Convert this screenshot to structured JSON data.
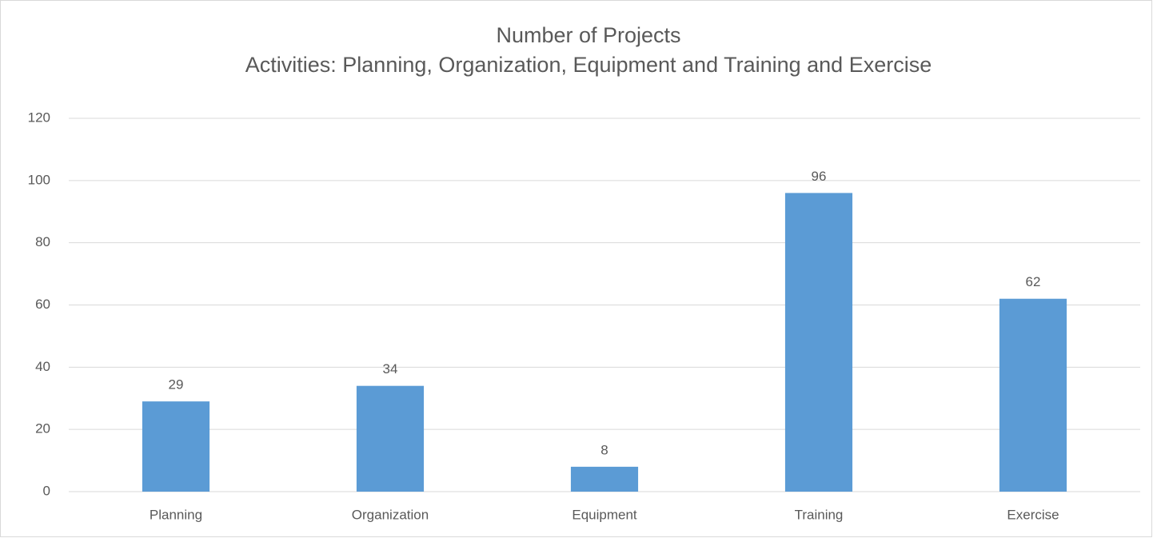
{
  "chart_data": {
    "type": "bar",
    "title": "Number of Projects",
    "subtitle": "Activities: Planning, Organization, Equipment and Training and Exercise",
    "categories": [
      "Planning",
      "Organization",
      "Equipment",
      "Training",
      "Exercise"
    ],
    "values": [
      29,
      34,
      8,
      96,
      62
    ],
    "color": "#5b9bd5",
    "ylim": [
      0,
      120
    ],
    "yticks": [
      0,
      20,
      40,
      60,
      80,
      100,
      120
    ],
    "grid": true,
    "data_labels": true
  }
}
